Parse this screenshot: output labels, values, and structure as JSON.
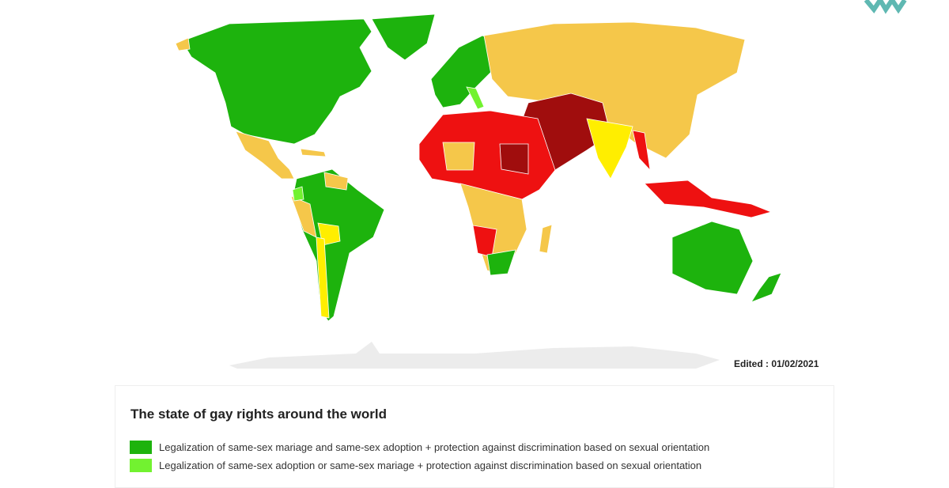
{
  "edited": "Edited : 01/02/2021",
  "legend": {
    "title": "The state of gay rights around the world",
    "items": [
      {
        "label": "Legalization of same-sex mariage and same-sex adoption + protection against discrimination based on sexual orientation",
        "color": "#1db30d"
      },
      {
        "label": "Legalization of same-sex adoption or same-sex mariage + protection against discrimination based on sexual orientation",
        "color": "#72f230"
      }
    ]
  }
}
